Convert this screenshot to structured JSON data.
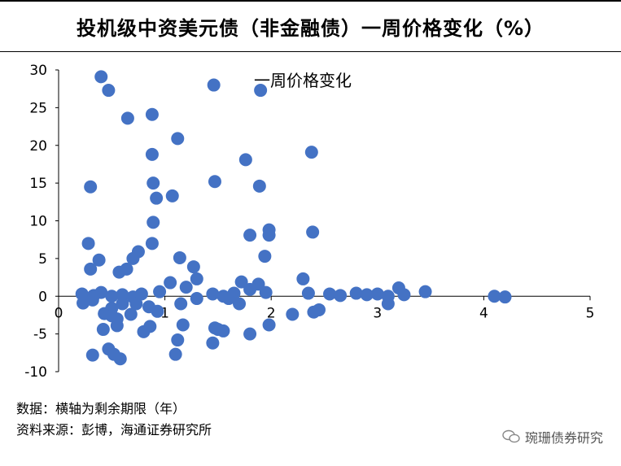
{
  "header": {
    "title": "投机级中资美元债（非金融债）一周价格变化（%）"
  },
  "footer": {
    "data_note": "数据：横轴为剩余期限（年）",
    "source_note": "资料来源：彭博，海通证券研究所"
  },
  "watermark": {
    "text": "琬珊债券研究",
    "icon": "wechat-icon"
  },
  "colors": {
    "marker": "#4472C4",
    "axis": "#000000"
  },
  "chart_data": {
    "type": "scatter",
    "title": "一周价格变化",
    "xlabel": "",
    "ylabel": "",
    "xlim": [
      0,
      5
    ],
    "ylim": [
      -10,
      30
    ],
    "x_ticks": [
      "0",
      "1",
      "2",
      "3",
      "4",
      "5"
    ],
    "y_ticks": [
      "30",
      "25",
      "20",
      "15",
      "10",
      "5",
      "0",
      "-5",
      "-10"
    ],
    "grid": false,
    "series": [
      {
        "points": [
          [
            0.4,
            29.1
          ],
          [
            0.47,
            27.3
          ],
          [
            0.65,
            23.6
          ],
          [
            0.88,
            24.1
          ],
          [
            1.46,
            28.0
          ],
          [
            1.9,
            27.3
          ],
          [
            0.88,
            18.8
          ],
          [
            1.12,
            20.9
          ],
          [
            1.76,
            18.1
          ],
          [
            2.38,
            19.1
          ],
          [
            0.3,
            14.5
          ],
          [
            0.89,
            15.0
          ],
          [
            0.92,
            13.0
          ],
          [
            1.07,
            13.3
          ],
          [
            1.47,
            15.2
          ],
          [
            1.89,
            14.6
          ],
          [
            0.89,
            9.8
          ],
          [
            1.98,
            8.8
          ],
          [
            1.98,
            8.1
          ],
          [
            1.8,
            8.1
          ],
          [
            2.39,
            8.5
          ],
          [
            0.28,
            7.0
          ],
          [
            0.88,
            7.0
          ],
          [
            0.38,
            4.8
          ],
          [
            0.75,
            5.9
          ],
          [
            0.7,
            5.0
          ],
          [
            1.14,
            5.1
          ],
          [
            1.94,
            5.3
          ],
          [
            0.3,
            3.6
          ],
          [
            0.57,
            3.2
          ],
          [
            0.64,
            3.6
          ],
          [
            1.27,
            3.9
          ],
          [
            2.3,
            2.3
          ],
          [
            0.22,
            0.3
          ],
          [
            0.33,
            0.1
          ],
          [
            0.4,
            0.5
          ],
          [
            0.5,
            0.0
          ],
          [
            0.6,
            0.2
          ],
          [
            0.7,
            -0.1
          ],
          [
            0.78,
            0.3
          ],
          [
            0.95,
            0.6
          ],
          [
            1.05,
            1.8
          ],
          [
            1.2,
            1.2
          ],
          [
            1.3,
            2.3
          ],
          [
            1.45,
            0.3
          ],
          [
            1.55,
            0.0
          ],
          [
            1.65,
            0.4
          ],
          [
            1.72,
            1.9
          ],
          [
            1.8,
            0.9
          ],
          [
            1.88,
            1.6
          ],
          [
            1.95,
            0.5
          ],
          [
            2.35,
            0.4
          ],
          [
            2.55,
            0.3
          ],
          [
            2.65,
            0.1
          ],
          [
            2.8,
            0.4
          ],
          [
            2.9,
            0.2
          ],
          [
            3.0,
            0.3
          ],
          [
            3.1,
            0.0
          ],
          [
            3.2,
            1.1
          ],
          [
            3.25,
            0.2
          ],
          [
            3.45,
            0.6
          ],
          [
            4.1,
            0.0
          ],
          [
            4.2,
            -0.1
          ],
          [
            0.23,
            -0.9
          ],
          [
            0.32,
            -0.5
          ],
          [
            0.43,
            -2.3
          ],
          [
            0.5,
            -1.6
          ],
          [
            0.6,
            -1.0
          ],
          [
            0.68,
            -2.4
          ],
          [
            0.73,
            -1.0
          ],
          [
            0.85,
            -1.4
          ],
          [
            0.93,
            -2.0
          ],
          [
            1.15,
            -1.0
          ],
          [
            1.3,
            -0.3
          ],
          [
            1.6,
            -0.3
          ],
          [
            1.7,
            -1.0
          ],
          [
            2.2,
            -2.4
          ],
          [
            2.4,
            -2.1
          ],
          [
            2.45,
            -1.8
          ],
          [
            3.1,
            -1.0
          ],
          [
            0.42,
            -4.4
          ],
          [
            0.55,
            -3.0
          ],
          [
            0.55,
            -3.9
          ],
          [
            0.5,
            -2.6
          ],
          [
            0.8,
            -4.7
          ],
          [
            0.86,
            -4.0
          ],
          [
            1.12,
            -5.8
          ],
          [
            1.17,
            -3.8
          ],
          [
            1.47,
            -4.2
          ],
          [
            1.5,
            -4.4
          ],
          [
            1.55,
            -4.6
          ],
          [
            1.8,
            -5.0
          ],
          [
            1.98,
            -3.8
          ],
          [
            1.45,
            -6.2
          ],
          [
            0.32,
            -7.8
          ],
          [
            0.47,
            -7.0
          ],
          [
            0.52,
            -7.7
          ],
          [
            0.58,
            -8.3
          ],
          [
            1.1,
            -7.7
          ]
        ]
      }
    ]
  }
}
